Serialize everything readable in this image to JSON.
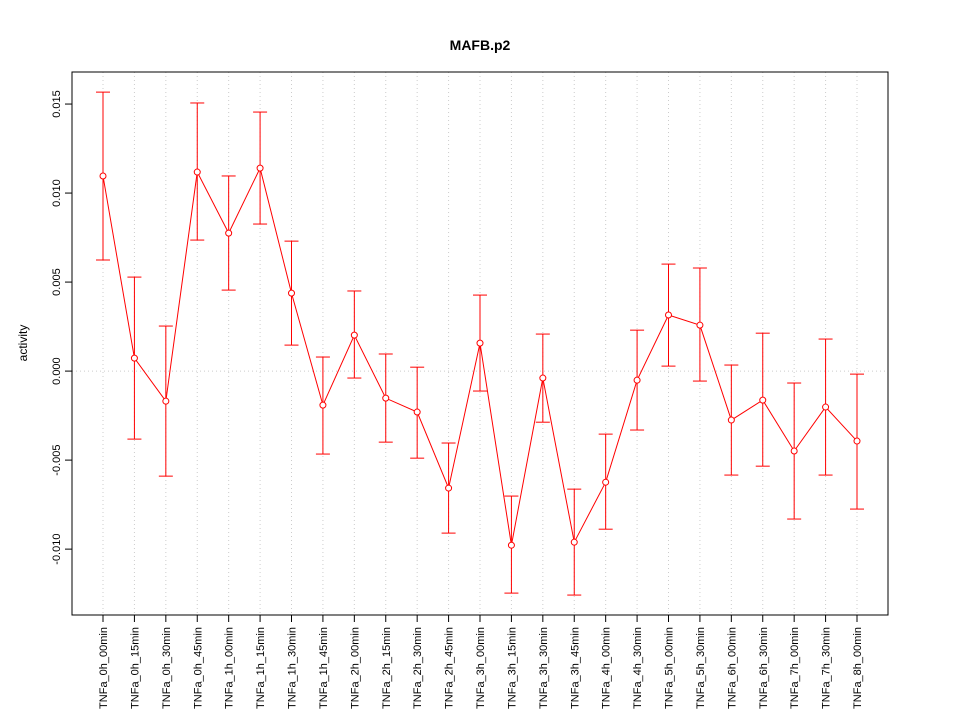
{
  "chart_data": {
    "type": "line",
    "title": "MAFB.p2",
    "xlabel": "",
    "ylabel": "activity",
    "ylim": [
      -0.0137,
      0.0168
    ],
    "yticks": [
      -0.01,
      -0.005,
      0.0,
      0.005,
      0.01,
      0.015
    ],
    "ytick_labels": [
      "-0.010",
      "-0.005",
      "0.000",
      "0.005",
      "0.010",
      "0.015"
    ],
    "grid": "dotted vertical at each category, horizontal at 0",
    "color": "#ff0000",
    "categories": [
      "TNFa_0h_00min",
      "TNFa_0h_15min",
      "TNFa_0h_30min",
      "TNFa_0h_45min",
      "TNFa_1h_00min",
      "TNFa_1h_15min",
      "TNFa_1h_30min",
      "TNFa_1h_45min",
      "TNFa_2h_00min",
      "TNFa_2h_15min",
      "TNFa_2h_30min",
      "TNFa_2h_45min",
      "TNFa_3h_00min",
      "TNFa_3h_15min",
      "TNFa_3h_30min",
      "TNFa_3h_45min",
      "TNFa_4h_00min",
      "TNFa_4h_30min",
      "TNFa_5h_00min",
      "TNFa_5h_30min",
      "TNFa_6h_00min",
      "TNFa_6h_30min",
      "TNFa_7h_00min",
      "TNFa_7h_30min",
      "TNFa_8h_00min"
    ],
    "values": [
      0.01096,
      0.00073,
      -0.00169,
      0.01118,
      0.00775,
      0.0114,
      0.00438,
      -0.00191,
      0.00202,
      -0.00152,
      -0.0023,
      -0.00657,
      0.00157,
      -0.00978,
      -0.00039,
      -0.00961,
      -0.00624,
      -0.00051,
      0.00315,
      0.00258,
      -0.00275,
      -0.00163,
      -0.00449,
      -0.00202,
      -0.00393
    ],
    "upper": [
      0.01567,
      0.00528,
      0.00253,
      0.01506,
      0.01096,
      0.01455,
      0.0073,
      0.00079,
      0.0045,
      0.00096,
      0.00022,
      -0.00404,
      0.00427,
      -0.00702,
      0.00208,
      -0.00663,
      -0.00354,
      0.0023,
      0.00601,
      0.00579,
      0.00034,
      0.00213,
      -0.00067,
      0.0018,
      -0.00017
    ],
    "lower": [
      0.00624,
      -0.00382,
      -0.0059,
      0.00736,
      0.00455,
      0.00826,
      0.00146,
      -0.00466,
      -0.00039,
      -0.00399,
      -0.00489,
      -0.0091,
      -0.00112,
      -0.01247,
      -0.00287,
      -0.01258,
      -0.00888,
      -0.00331,
      0.00028,
      -0.00056,
      -0.00584,
      -0.00534,
      -0.00831,
      -0.00584,
      -0.00775
    ]
  }
}
